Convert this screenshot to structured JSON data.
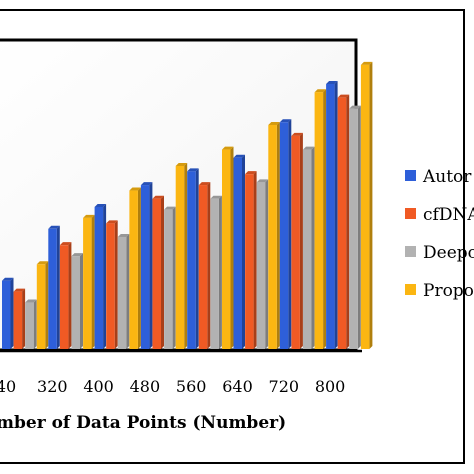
{
  "chart_data": {
    "type": "bar",
    "title": "",
    "xlabel": "mber of Data Points (Number)",
    "ylabel": "",
    "categories": [
      "40",
      "320",
      "400",
      "480",
      "560",
      "640",
      "720",
      "800"
    ],
    "ylim": [
      0,
      1
    ],
    "grid": false,
    "legend_position": "right",
    "series": [
      {
        "name": "Autor",
        "color": "#2e5fd9",
        "values": [
          0.25,
          0.44,
          0.52,
          0.6,
          0.65,
          0.7,
          0.83,
          0.97
        ]
      },
      {
        "name": "cfDNA",
        "color": "#f05a24",
        "values": [
          0.21,
          0.38,
          0.46,
          0.55,
          0.6,
          0.64,
          0.78,
          0.92
        ]
      },
      {
        "name": "Deepo",
        "color": "#b2b2b2",
        "values": [
          0.17,
          0.34,
          0.41,
          0.51,
          0.55,
          0.61,
          0.73,
          0.88
        ]
      },
      {
        "name": "Propo",
        "color": "#fbb612",
        "values": [
          0.31,
          0.48,
          0.58,
          0.67,
          0.73,
          0.82,
          0.94,
          1.04
        ]
      }
    ]
  }
}
